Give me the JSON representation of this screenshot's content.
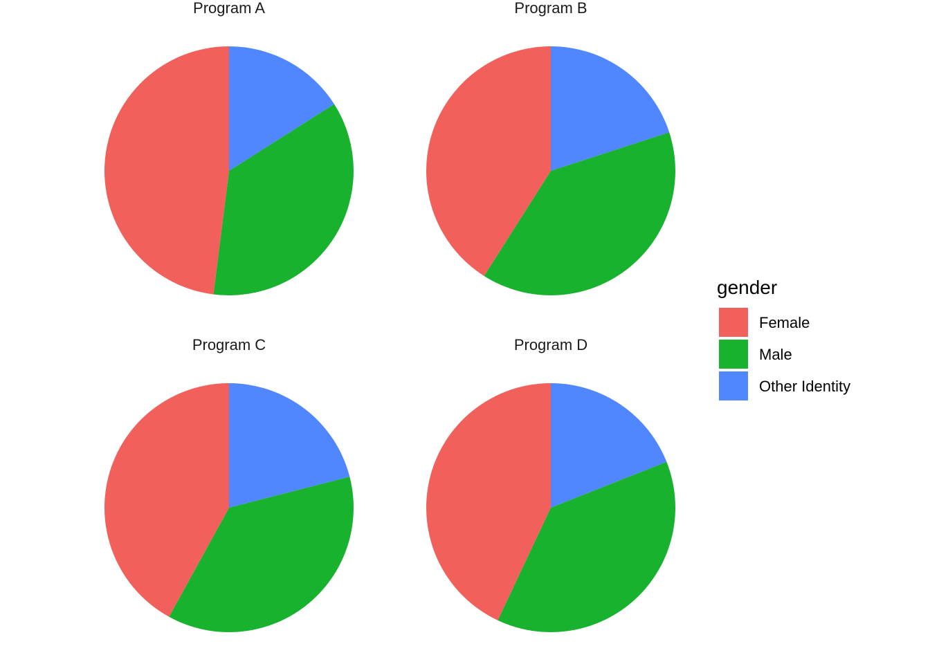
{
  "chart_data": {
    "type": "pie",
    "facet_layout": "2x2 grid",
    "start_angle": "12 o'clock",
    "direction": "clockwise",
    "slice_order": [
      "Other Identity",
      "Male",
      "Female"
    ],
    "legend": {
      "title": "gender",
      "placement": "right",
      "entries": [
        {
          "label": "Female",
          "color": "#F2605C"
        },
        {
          "label": "Male",
          "color": "#19B22F"
        },
        {
          "label": "Other Identity",
          "color": "#5087FF"
        }
      ]
    },
    "facets": [
      {
        "title": "Program A",
        "values": {
          "Female": 0.48,
          "Male": 0.36,
          "Other Identity": 0.16
        }
      },
      {
        "title": "Program B",
        "values": {
          "Female": 0.41,
          "Male": 0.39,
          "Other Identity": 0.2
        }
      },
      {
        "title": "Program C",
        "values": {
          "Female": 0.42,
          "Male": 0.37,
          "Other Identity": 0.21
        }
      },
      {
        "title": "Program D",
        "values": {
          "Female": 0.43,
          "Male": 0.38,
          "Other Identity": 0.19
        }
      }
    ]
  }
}
